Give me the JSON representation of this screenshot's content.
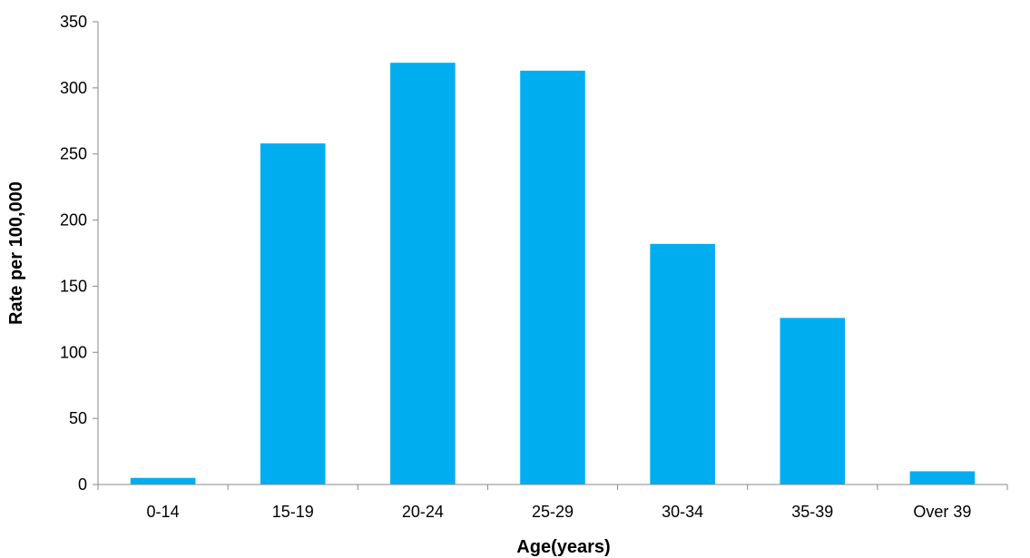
{
  "chart_data": {
    "type": "bar",
    "title": "",
    "xlabel": "Age(years)",
    "ylabel": "Rate per 100,000",
    "categories": [
      "0-14",
      "15-19",
      "20-24",
      "25-29",
      "30-34",
      "35-39",
      "Over 39"
    ],
    "values": [
      5,
      258,
      319,
      313,
      182,
      126,
      10
    ],
    "ylim": [
      0,
      350
    ],
    "yticks": [
      0,
      50,
      100,
      150,
      200,
      250,
      300,
      350
    ],
    "grid": false,
    "legend": "none",
    "colors": {
      "bar": "#00AEEF",
      "axis": "#888888",
      "text": "#000000"
    }
  }
}
